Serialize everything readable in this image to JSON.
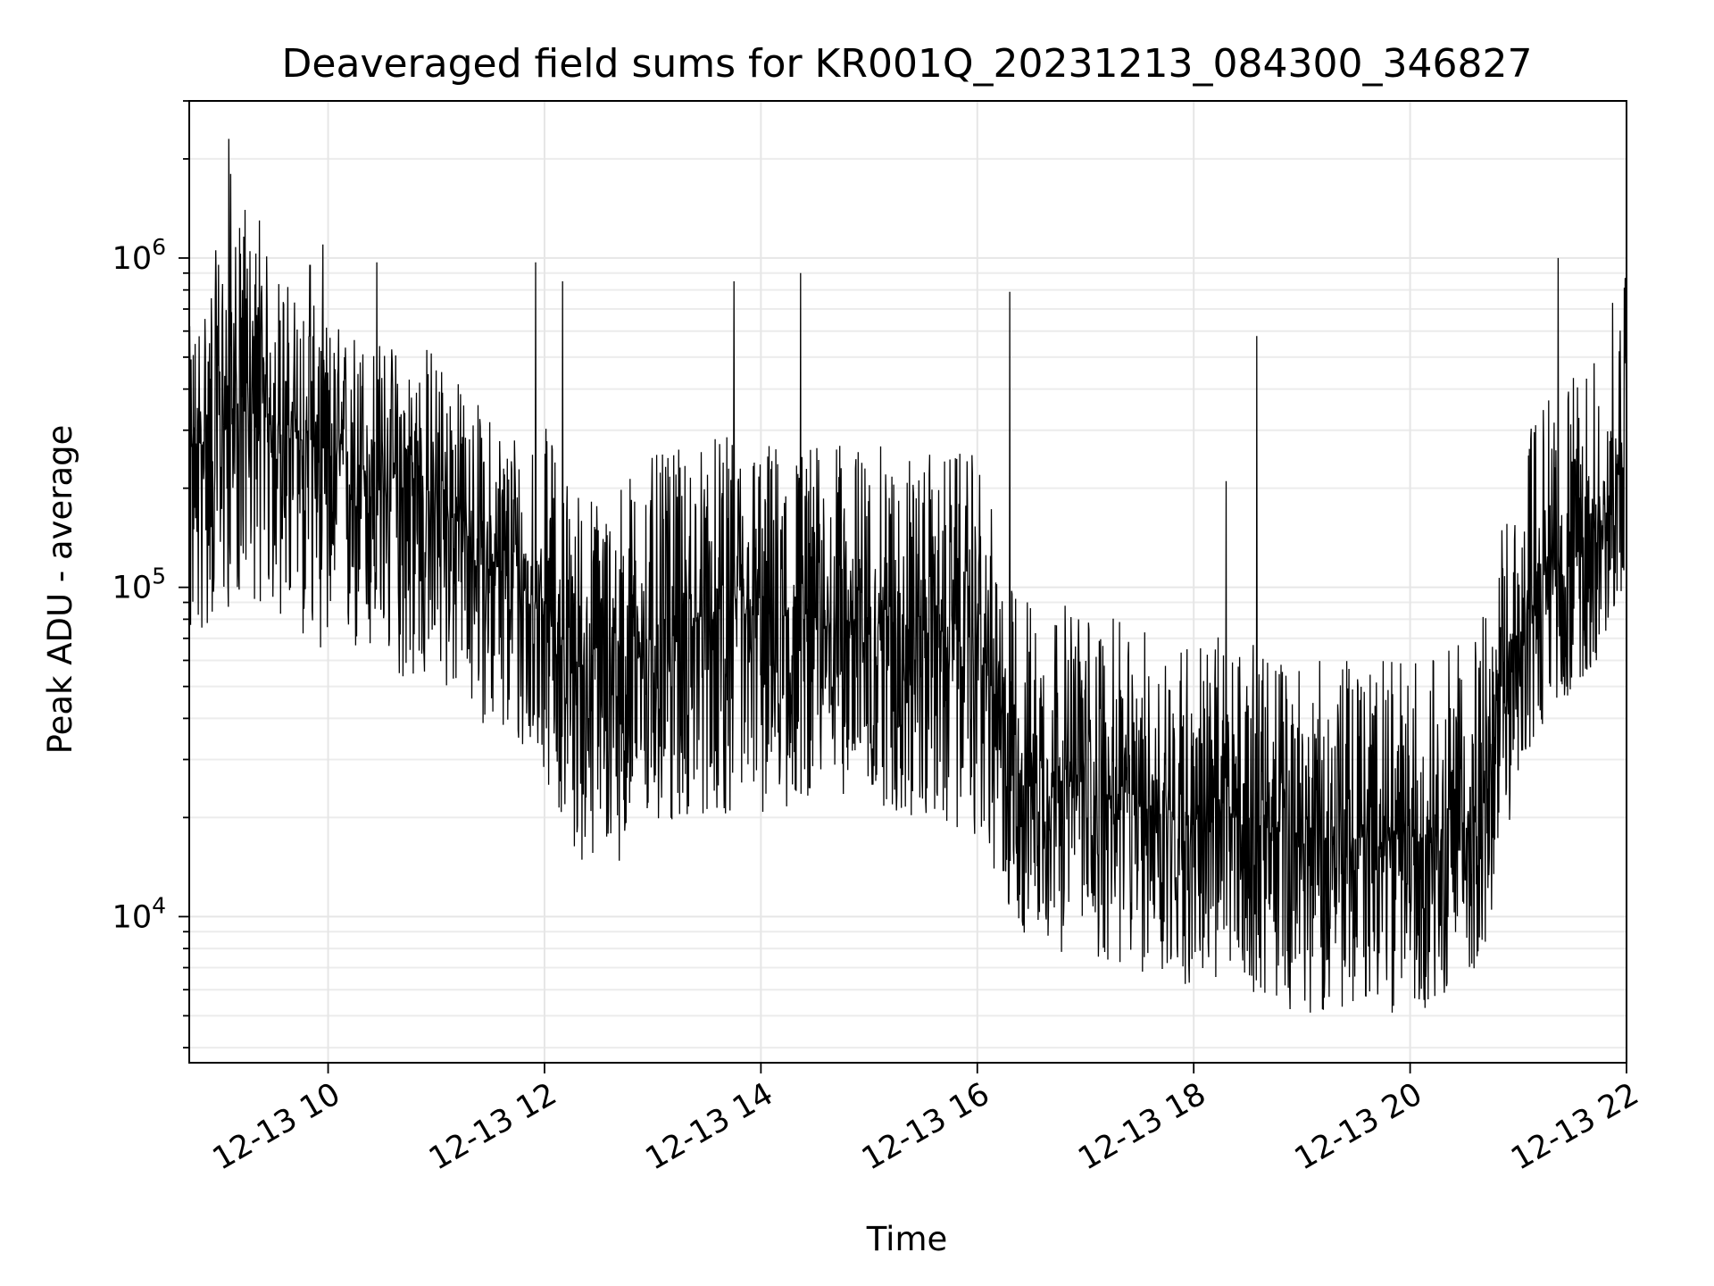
{
  "chart_data": {
    "type": "line",
    "title": "Deaveraged field sums for KR001Q_20231213_084300_346827",
    "xlabel": "Time",
    "ylabel": "Peak ADU - average",
    "y_scale": "log",
    "ylim": [
      3600,
      3000000
    ],
    "xlim": [
      "2023-12-13T08:43:00",
      "2023-12-13T22:00:00"
    ],
    "x_tick_values": [
      "2023-12-13T10:00",
      "2023-12-13T12:00",
      "2023-12-13T14:00",
      "2023-12-13T16:00",
      "2023-12-13T18:00",
      "2023-12-13T20:00",
      "2023-12-13T22:00"
    ],
    "x_tick_labels": [
      "12-13 10",
      "12-13 12",
      "12-13 14",
      "12-13 16",
      "12-13 18",
      "12-13 20",
      "12-13 22"
    ],
    "y_tick_values": [
      10000,
      100000,
      1000000
    ],
    "y_tick_labels": [
      {
        "base": "10",
        "exp": "4"
      },
      {
        "base": "10",
        "exp": "5"
      },
      {
        "base": "10",
        "exp": "6"
      }
    ],
    "grid": true,
    "series": [
      {
        "color": "#000000",
        "x": [
          "2023-12-13T08:45",
          "2023-12-13T09:00",
          "2023-12-13T09:15",
          "2023-12-13T09:30",
          "2023-12-13T09:45",
          "2023-12-13T10:00",
          "2023-12-13T10:15",
          "2023-12-13T10:30",
          "2023-12-13T10:45",
          "2023-12-13T11:00",
          "2023-12-13T11:15",
          "2023-12-13T11:30",
          "2023-12-13T11:45",
          "2023-12-13T12:00",
          "2023-12-13T12:15",
          "2023-12-13T12:30",
          "2023-12-13T12:45",
          "2023-12-13T13:00",
          "2023-12-13T13:15",
          "2023-12-13T13:30",
          "2023-12-13T13:45",
          "2023-12-13T14:00",
          "2023-12-13T14:15",
          "2023-12-13T14:30",
          "2023-12-13T14:45",
          "2023-12-13T15:00",
          "2023-12-13T15:15",
          "2023-12-13T15:30",
          "2023-12-13T15:45",
          "2023-12-13T16:00",
          "2023-12-13T16:15",
          "2023-12-13T16:30",
          "2023-12-13T16:45",
          "2023-12-13T17:00",
          "2023-12-13T17:15",
          "2023-12-13T17:30",
          "2023-12-13T17:45",
          "2023-12-13T18:00",
          "2023-12-13T18:15",
          "2023-12-13T18:30",
          "2023-12-13T18:45",
          "2023-12-13T19:00",
          "2023-12-13T19:15",
          "2023-12-13T19:30",
          "2023-12-13T19:45",
          "2023-12-13T20:00",
          "2023-12-13T20:15",
          "2023-12-13T20:30",
          "2023-12-13T20:45",
          "2023-12-13T21:00",
          "2023-12-13T21:15",
          "2023-12-13T21:30",
          "2023-12-13T21:45",
          "2023-12-13T22:00"
        ],
        "y": [
          250000,
          320000,
          380000,
          320000,
          280000,
          250000,
          230000,
          220000,
          200000,
          190000,
          150000,
          120000,
          100000,
          90000,
          60000,
          55000,
          60000,
          70000,
          75000,
          80000,
          80000,
          80000,
          80000,
          80000,
          78000,
          78000,
          78000,
          75000,
          72000,
          70000,
          30000,
          28000,
          26000,
          25000,
          23000,
          22000,
          21000,
          20000,
          20000,
          20000,
          18000,
          17000,
          17000,
          17000,
          17000,
          17000,
          18000,
          19000,
          25000,
          70000,
          110000,
          120000,
          150000,
          250000
        ],
        "spread_low": [
          0.25,
          0.25,
          0.25,
          0.25,
          0.25,
          0.25,
          0.25,
          0.25,
          0.25,
          0.25,
          0.3,
          0.3,
          0.3,
          0.3,
          0.25,
          0.25,
          0.25,
          0.25,
          0.25,
          0.25,
          0.25,
          0.25,
          0.25,
          0.3,
          0.3,
          0.3,
          0.25,
          0.25,
          0.25,
          0.25,
          0.3,
          0.3,
          0.3,
          0.3,
          0.3,
          0.3,
          0.3,
          0.3,
          0.3,
          0.3,
          0.3,
          0.3,
          0.3,
          0.3,
          0.3,
          0.3,
          0.3,
          0.3,
          0.35,
          0.35,
          0.35,
          0.4,
          0.4,
          0.4
        ],
        "spread_high": [
          2.5,
          3.6,
          3.4,
          3.0,
          2.8,
          2.6,
          2.7,
          2.6,
          2.7,
          3.0,
          2.7,
          2.8,
          3.3,
          3.5,
          3.6,
          3.6,
          3.8,
          3.6,
          3.5,
          3.6,
          3.6,
          3.6,
          3.5,
          3.5,
          3.5,
          3.5,
          3.4,
          3.4,
          3.6,
          3.6,
          3.5,
          3.5,
          3.5,
          3.5,
          3.5,
          3.4,
          3.6,
          3.6,
          3.6,
          3.4,
          3.5,
          3.6,
          3.5,
          3.6,
          3.6,
          3.6,
          3.6,
          3.6,
          3.6,
          3.6,
          3.6,
          3.6,
          3.7,
          3.8
        ]
      }
    ],
    "spikes": [
      {
        "x": "2023-12-13T09:05",
        "y": 2300000
      },
      {
        "x": "2023-12-13T09:06",
        "y": 1800000
      },
      {
        "x": "2023-12-13T09:14",
        "y": 1400000
      },
      {
        "x": "2023-12-13T09:22",
        "y": 1300000
      },
      {
        "x": "2023-12-13T09:50",
        "y": 950000
      },
      {
        "x": "2023-12-13T09:57",
        "y": 1100000
      },
      {
        "x": "2023-12-13T10:27",
        "y": 970000
      },
      {
        "x": "2023-12-13T11:55",
        "y": 970000
      },
      {
        "x": "2023-12-13T12:10",
        "y": 850000
      },
      {
        "x": "2023-12-13T13:45",
        "y": 850000
      },
      {
        "x": "2023-12-13T14:22",
        "y": 900000
      },
      {
        "x": "2023-12-13T16:18",
        "y": 790000
      },
      {
        "x": "2023-12-13T18:18",
        "y": 210000
      },
      {
        "x": "2023-12-13T18:35",
        "y": 580000
      },
      {
        "x": "2023-12-13T21:22",
        "y": 1000000
      },
      {
        "x": "2023-12-13T22:01",
        "y": 1000000
      }
    ]
  }
}
